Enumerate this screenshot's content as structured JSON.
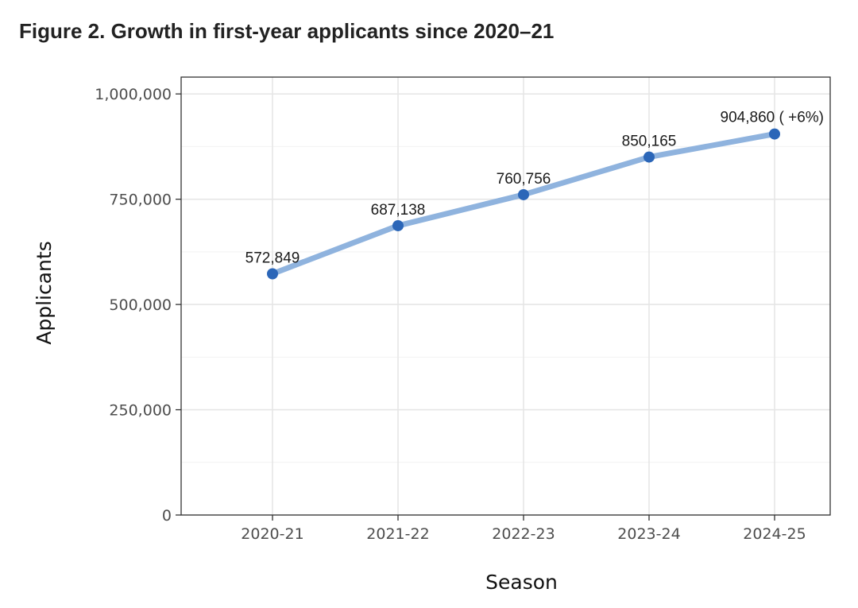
{
  "figure": {
    "title": "Figure 2. Growth in first-year applicants since 2020–21"
  },
  "chart_data": {
    "type": "line",
    "title": "Figure 2. Growth in first-year applicants since 2020–21",
    "xlabel": "Season",
    "ylabel": "Applicants",
    "categories": [
      "2020-21",
      "2021-22",
      "2022-23",
      "2023-24",
      "2024-25"
    ],
    "series": [
      {
        "values": [
          572849,
          687138,
          760756,
          850165,
          904860
        ],
        "color": "#8fb3de",
        "marker_color": "#2b66b8"
      }
    ],
    "point_labels": [
      "572,849",
      "687,138",
      "760,756",
      "850,165",
      "904,860 ( +6%)"
    ],
    "ylim": [
      0,
      1040000
    ],
    "yticks": [
      0,
      250000,
      500000,
      750000,
      1000000
    ],
    "ytick_labels": [
      "0",
      "250,000",
      "500,000",
      "750,000",
      "1,000,000"
    ],
    "grid": true,
    "legend": "none",
    "colors": {
      "panel_border": "#333333",
      "grid_major": "#e6e6e6",
      "grid_minor": "#f2f2f2"
    }
  }
}
